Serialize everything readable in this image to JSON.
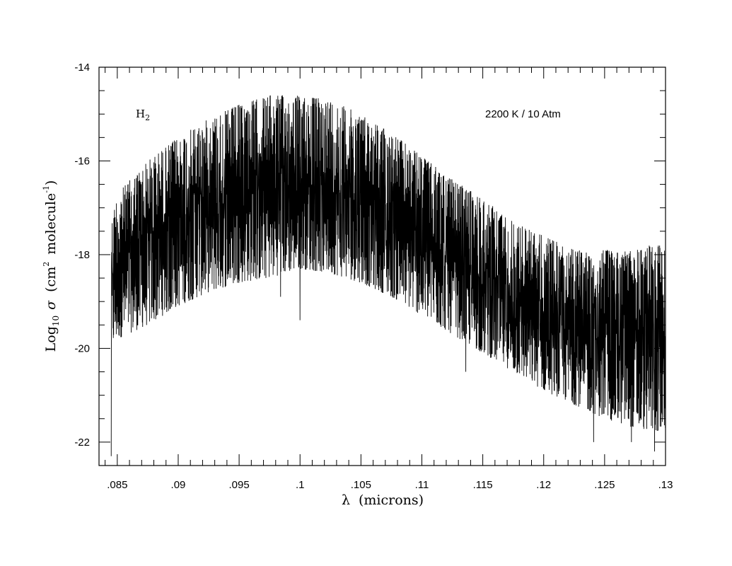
{
  "chart_data": {
    "type": "line",
    "xlabel": {
      "prefix": "λ",
      "rest": "(microns)"
    },
    "ylabel": {
      "base": "Log",
      "sub": "10",
      "sigma": "σ",
      "open": "(cm",
      "sup1": "2",
      "mid": "molecule",
      "sup2": "-1",
      "close": ")"
    },
    "xlim": [
      0.0835,
      0.13
    ],
    "ylim": [
      -22.5,
      -14
    ],
    "x_ticks": [
      {
        "v": 0.085,
        "label": ".085"
      },
      {
        "v": 0.09,
        "label": ".09"
      },
      {
        "v": 0.095,
        "label": ".095"
      },
      {
        "v": 0.1,
        "label": ".1"
      },
      {
        "v": 0.105,
        "label": ".105"
      },
      {
        "v": 0.11,
        "label": ".11"
      },
      {
        "v": 0.115,
        "label": ".115"
      },
      {
        "v": 0.12,
        "label": ".12"
      },
      {
        "v": 0.125,
        "label": ".125"
      },
      {
        "v": 0.13,
        "label": ".13"
      }
    ],
    "y_ticks": [
      {
        "v": -14,
        "label": "-14"
      },
      {
        "v": -16,
        "label": "-16"
      },
      {
        "v": -18,
        "label": "-18"
      },
      {
        "v": -20,
        "label": "-20"
      },
      {
        "v": -22,
        "label": "-22"
      }
    ],
    "annotations": {
      "species": {
        "base": "H",
        "sub": "2"
      },
      "condition": "2200 K / 10 Atm"
    },
    "series": [
      {
        "x_start": 0.0845,
        "x_end": 0.13,
        "envelope_upper": [
          [
            0.0845,
            -17.3
          ],
          [
            0.085,
            -16.7
          ],
          [
            0.0875,
            -16.0
          ],
          [
            0.09,
            -15.5
          ],
          [
            0.0925,
            -15.1
          ],
          [
            0.095,
            -14.8
          ],
          [
            0.0975,
            -14.6
          ],
          [
            0.1,
            -14.6
          ],
          [
            0.1025,
            -14.7
          ],
          [
            0.105,
            -15.0
          ],
          [
            0.1075,
            -15.4
          ],
          [
            0.11,
            -15.9
          ],
          [
            0.1125,
            -16.4
          ],
          [
            0.115,
            -16.8
          ],
          [
            0.1175,
            -17.3
          ],
          [
            0.12,
            -17.6
          ],
          [
            0.1225,
            -17.9
          ],
          [
            0.125,
            -17.9
          ],
          [
            0.1275,
            -17.9
          ],
          [
            0.13,
            -17.7
          ]
        ],
        "envelope_lower": [
          [
            0.0845,
            -20.0
          ],
          [
            0.085,
            -19.8
          ],
          [
            0.0875,
            -19.5
          ],
          [
            0.09,
            -19.1
          ],
          [
            0.0925,
            -18.8
          ],
          [
            0.095,
            -18.6
          ],
          [
            0.0975,
            -18.5
          ],
          [
            0.1,
            -18.3
          ],
          [
            0.1025,
            -18.4
          ],
          [
            0.105,
            -18.6
          ],
          [
            0.1075,
            -18.9
          ],
          [
            0.11,
            -19.3
          ],
          [
            0.1125,
            -19.7
          ],
          [
            0.115,
            -20.1
          ],
          [
            0.1175,
            -20.5
          ],
          [
            0.12,
            -20.9
          ],
          [
            0.1225,
            -21.2
          ],
          [
            0.125,
            -21.5
          ],
          [
            0.1275,
            -21.7
          ],
          [
            0.13,
            -21.8
          ]
        ],
        "sharp_dips": [
          [
            0.0845,
            -22.3
          ],
          [
            0.0984,
            -18.9
          ],
          [
            0.1,
            -19.4
          ],
          [
            0.1136,
            -20.5
          ],
          [
            0.1241,
            -22.0
          ],
          [
            0.1272,
            -22.0
          ],
          [
            0.1291,
            -22.2
          ]
        ]
      }
    ]
  }
}
